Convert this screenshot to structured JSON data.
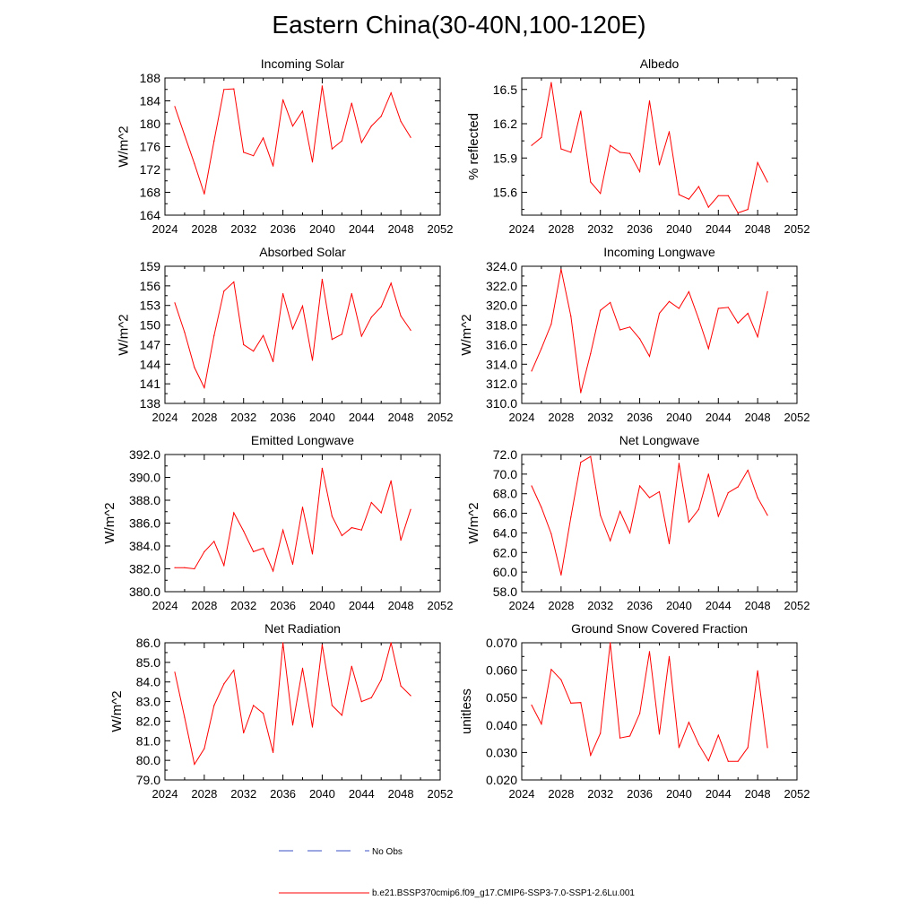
{
  "title": "Eastern China(30-40N,100-120E)",
  "colors": {
    "model": "#ff0000",
    "obs": "#3b4fc4",
    "axis": "#000000"
  },
  "legend": {
    "obs_label": "No Obs",
    "model_label": "b.e21.BSSP370cmip6.f09_g17.CMIP6-SSP3-7.0-SSP1-2.6Lu.001"
  },
  "chart_data": [
    {
      "type": "line",
      "title": "Incoming Solar",
      "ylabel": "W/m^2",
      "xlim": [
        2024,
        2052
      ],
      "ylim": [
        164,
        188
      ],
      "xticks": [
        "2024",
        "2028",
        "2032",
        "2036",
        "2040",
        "2044",
        "2048",
        "2052"
      ],
      "yticks": [
        "164",
        "168",
        "172",
        "176",
        "180",
        "184",
        "188"
      ],
      "x": [
        2025,
        2026,
        2027,
        2028,
        2029,
        2030,
        2031,
        2032,
        2033,
        2034,
        2035,
        2036,
        2037,
        2038,
        2039,
        2040,
        2041,
        2042,
        2043,
        2044,
        2045,
        2046,
        2047,
        2048,
        2049
      ],
      "series": [
        {
          "values": [
            183.0,
            178.0,
            173.0,
            167.7,
            177.0,
            186.0,
            186.1,
            175.0,
            174.4,
            177.5,
            172.6,
            184.2,
            179.6,
            182.2,
            173.3,
            186.6,
            175.6,
            177.0,
            183.6,
            176.7,
            179.6,
            181.3,
            185.4,
            180.4,
            177.6
          ]
        }
      ]
    },
    {
      "type": "line",
      "title": "Albedo",
      "ylabel": "% reflected",
      "xlim": [
        2024,
        2052
      ],
      "ylim": [
        15.4,
        16.6
      ],
      "xticks": [
        "2024",
        "2028",
        "2032",
        "2036",
        "2040",
        "2044",
        "2048",
        "2052"
      ],
      "yticks": [
        "15.6",
        "15.9",
        "16.2",
        "16.5"
      ],
      "x": [
        2025,
        2026,
        2027,
        2028,
        2029,
        2030,
        2031,
        2032,
        2033,
        2034,
        2035,
        2036,
        2037,
        2038,
        2039,
        2040,
        2041,
        2042,
        2043,
        2044,
        2045,
        2046,
        2047,
        2048,
        2049
      ],
      "series": [
        {
          "values": [
            16.01,
            16.08,
            16.56,
            15.98,
            15.95,
            16.31,
            15.69,
            15.59,
            16.01,
            15.95,
            15.94,
            15.78,
            16.4,
            15.84,
            16.13,
            15.58,
            15.54,
            15.65,
            15.47,
            15.57,
            15.57,
            15.42,
            15.45,
            15.86,
            15.69
          ]
        }
      ]
    },
    {
      "type": "line",
      "title": "Absorbed Solar",
      "ylabel": "W/m^2",
      "xlim": [
        2024,
        2052
      ],
      "ylim": [
        138,
        159
      ],
      "xticks": [
        "2024",
        "2028",
        "2032",
        "2036",
        "2040",
        "2044",
        "2048",
        "2052"
      ],
      "yticks": [
        "138",
        "141",
        "144",
        "147",
        "150",
        "153",
        "156",
        "159"
      ],
      "x": [
        2025,
        2026,
        2027,
        2028,
        2029,
        2030,
        2031,
        2032,
        2033,
        2034,
        2035,
        2036,
        2037,
        2038,
        2039,
        2040,
        2041,
        2042,
        2043,
        2044,
        2045,
        2046,
        2047,
        2048,
        2049
      ],
      "series": [
        {
          "values": [
            153.4,
            148.9,
            143.5,
            140.4,
            148.4,
            155.2,
            156.6,
            147.0,
            146.0,
            148.4,
            144.4,
            154.8,
            149.4,
            152.9,
            144.6,
            157.0,
            147.8,
            148.6,
            154.8,
            148.3,
            151.2,
            152.8,
            156.4,
            151.4,
            149.2
          ]
        }
      ]
    },
    {
      "type": "line",
      "title": "Incoming Longwave",
      "ylabel": "W/m^2",
      "xlim": [
        2024,
        2052
      ],
      "ylim": [
        310,
        324
      ],
      "xticks": [
        "2024",
        "2028",
        "2032",
        "2036",
        "2040",
        "2044",
        "2048",
        "2052"
      ],
      "yticks": [
        "310.0",
        "312.0",
        "314.0",
        "316.0",
        "318.0",
        "320.0",
        "322.0",
        "324.0"
      ],
      "x": [
        2025,
        2026,
        2027,
        2028,
        2029,
        2030,
        2031,
        2032,
        2033,
        2034,
        2035,
        2036,
        2037,
        2038,
        2039,
        2040,
        2041,
        2042,
        2043,
        2044,
        2045,
        2046,
        2047,
        2048,
        2049
      ],
      "series": [
        {
          "values": [
            313.3,
            315.6,
            318.1,
            323.7,
            318.9,
            311.1,
            315.1,
            319.5,
            320.3,
            317.5,
            317.8,
            316.6,
            314.8,
            319.2,
            320.4,
            319.7,
            321.4,
            318.6,
            315.6,
            319.7,
            319.8,
            318.2,
            319.2,
            316.8,
            321.4
          ]
        }
      ]
    },
    {
      "type": "line",
      "title": "Emitted Longwave",
      "ylabel": "W/m^2",
      "xlim": [
        2024,
        2052
      ],
      "ylim": [
        380,
        392
      ],
      "xticks": [
        "2024",
        "2028",
        "2032",
        "2036",
        "2040",
        "2044",
        "2048",
        "2052"
      ],
      "yticks": [
        "380.0",
        "382.0",
        "384.0",
        "386.0",
        "388.0",
        "390.0",
        "392.0"
      ],
      "x": [
        2025,
        2026,
        2027,
        2028,
        2029,
        2030,
        2031,
        2032,
        2033,
        2034,
        2035,
        2036,
        2037,
        2038,
        2039,
        2040,
        2041,
        2042,
        2043,
        2044,
        2045,
        2046,
        2047,
        2048,
        2049
      ],
      "series": [
        {
          "values": [
            382.1,
            382.1,
            382.0,
            383.5,
            384.4,
            382.3,
            386.9,
            385.3,
            383.5,
            383.8,
            381.8,
            385.4,
            382.4,
            387.4,
            383.3,
            390.8,
            386.6,
            384.9,
            385.6,
            385.4,
            387.8,
            386.9,
            389.7,
            384.5,
            387.2
          ]
        }
      ]
    },
    {
      "type": "line",
      "title": "Net Longwave",
      "ylabel": "W/m^2",
      "xlim": [
        2024,
        2052
      ],
      "ylim": [
        58,
        72
      ],
      "xticks": [
        "2024",
        "2028",
        "2032",
        "2036",
        "2040",
        "2044",
        "2048",
        "2052"
      ],
      "yticks": [
        "58.0",
        "60.0",
        "62.0",
        "64.0",
        "66.0",
        "68.0",
        "70.0",
        "72.0"
      ],
      "x": [
        2025,
        2026,
        2027,
        2028,
        2029,
        2030,
        2031,
        2032,
        2033,
        2034,
        2035,
        2036,
        2037,
        2038,
        2039,
        2040,
        2041,
        2042,
        2043,
        2044,
        2045,
        2046,
        2047,
        2048,
        2049
      ],
      "series": [
        {
          "values": [
            68.8,
            66.6,
            63.9,
            59.7,
            65.6,
            71.2,
            71.8,
            65.8,
            63.2,
            66.2,
            64.0,
            68.8,
            67.6,
            68.2,
            62.9,
            71.1,
            65.1,
            66.4,
            70.0,
            65.7,
            68.1,
            68.7,
            70.4,
            67.6,
            65.8
          ]
        }
      ]
    },
    {
      "type": "line",
      "title": "Net Radiation",
      "ylabel": "W/m^2",
      "xlim": [
        2024,
        2052
      ],
      "ylim": [
        79,
        86
      ],
      "xticks": [
        "2024",
        "2028",
        "2032",
        "2036",
        "2040",
        "2044",
        "2048",
        "2052"
      ],
      "yticks": [
        "79.0",
        "80.0",
        "81.0",
        "82.0",
        "83.0",
        "84.0",
        "85.0",
        "86.0"
      ],
      "x": [
        2025,
        2026,
        2027,
        2028,
        2029,
        2030,
        2031,
        2032,
        2033,
        2034,
        2035,
        2036,
        2037,
        2038,
        2039,
        2040,
        2041,
        2042,
        2043,
        2044,
        2045,
        2046,
        2047,
        2048,
        2049
      ],
      "series": [
        {
          "values": [
            84.5,
            82.2,
            79.8,
            80.6,
            82.8,
            83.9,
            84.6,
            81.4,
            82.8,
            82.4,
            80.4,
            86.0,
            81.8,
            84.7,
            81.7,
            85.9,
            82.8,
            82.3,
            84.8,
            83.0,
            83.2,
            84.1,
            86.0,
            83.8,
            83.3
          ]
        }
      ]
    },
    {
      "type": "line",
      "title": "Ground Snow Covered Fraction",
      "ylabel": "unitless",
      "xlim": [
        2024,
        2052
      ],
      "ylim": [
        0.02,
        0.07
      ],
      "xticks": [
        "2024",
        "2028",
        "2032",
        "2036",
        "2040",
        "2044",
        "2048",
        "2052"
      ],
      "yticks": [
        "0.020",
        "0.030",
        "0.040",
        "0.050",
        "0.060",
        "0.070"
      ],
      "x": [
        2025,
        2026,
        2027,
        2028,
        2029,
        2030,
        2031,
        2032,
        2033,
        2034,
        2035,
        2036,
        2037,
        2038,
        2039,
        2040,
        2041,
        2042,
        2043,
        2044,
        2045,
        2046,
        2047,
        2048,
        2049
      ],
      "series": [
        {
          "values": [
            0.0473,
            0.0404,
            0.0603,
            0.0565,
            0.048,
            0.0482,
            0.029,
            0.037,
            0.07,
            0.0353,
            0.036,
            0.0442,
            0.0668,
            0.0367,
            0.065,
            0.0318,
            0.041,
            0.033,
            0.027,
            0.0363,
            0.0268,
            0.0268,
            0.0318,
            0.0598,
            0.0318
          ]
        }
      ]
    }
  ]
}
